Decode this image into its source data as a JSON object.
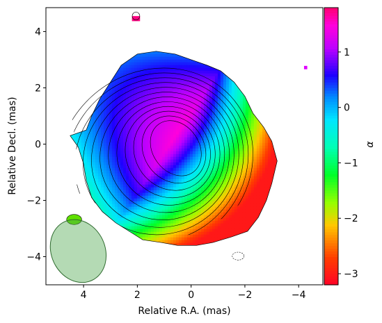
{
  "chart_data": {
    "type": "heatmap",
    "xlabel": "Relative R.A. (mas)",
    "ylabel": "Relative Decl. (mas)",
    "xlim": [
      5.4,
      -4.9
    ],
    "ylim": [
      -5.0,
      4.85
    ],
    "xticks": [
      4,
      2,
      0,
      -2,
      -4
    ],
    "yticks": [
      4,
      2,
      0,
      -2,
      -4
    ],
    "xtick_labels": [
      "4",
      "2",
      "0",
      "−2",
      "−4"
    ],
    "ytick_labels": [
      "4",
      "2",
      "0",
      "−2",
      "−4"
    ],
    "colorbar": {
      "label": "α",
      "range": [
        -3.2,
        1.8
      ],
      "ticks": [
        1,
        0,
        -1,
        -2,
        -3
      ],
      "tick_labels": [
        "1",
        "0",
        "−1",
        "−2",
        "−3"
      ],
      "colormap": "gist_rainbow"
    },
    "spectral_gradient": {
      "peak_center": [
        0.5,
        0.4
      ],
      "peak_value": 1.5,
      "edge_value": -3.0,
      "gradient_direction_deg": 215
    },
    "contour_levels": 12,
    "beam": {
      "center": [
        4.2,
        -3.8
      ],
      "major_mas": 2.3,
      "minor_mas": 2.0,
      "pa_deg": 25
    },
    "colors": {
      "beam_fill": "#4ca64c",
      "beam_edge": "#2f6b2f",
      "contour": "#000000",
      "frame": "#000000"
    }
  }
}
